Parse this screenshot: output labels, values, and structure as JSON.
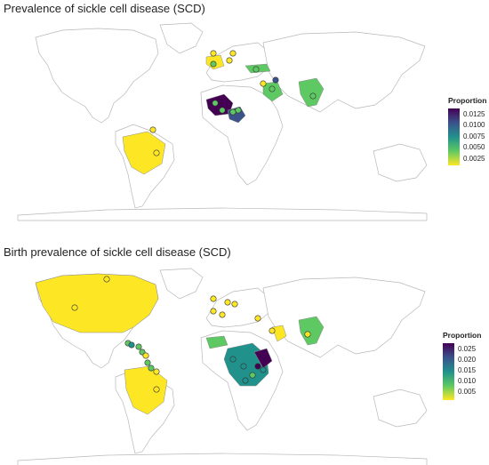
{
  "panels": [
    {
      "title": "Prevalence of sickle cell disease (SCD)",
      "legend": {
        "title": "Proportion",
        "ticks": [
          "0.0125",
          "0.0100",
          "0.0075",
          "0.0050",
          "0.0025"
        ],
        "tick_values": [
          0.0125,
          0.01,
          0.0075,
          0.005,
          0.0025
        ],
        "range": [
          0.001,
          0.0138
        ]
      }
    },
    {
      "title": "Birth prevalence of sickle cell disease (SCD)",
      "legend": {
        "title": "Proportion",
        "ticks": [
          "0.025",
          "0.020",
          "0.015",
          "0.010",
          "0.005"
        ],
        "tick_values": [
          0.025,
          0.02,
          0.015,
          0.01,
          0.005
        ],
        "range": [
          0.001,
          0.028
        ]
      }
    }
  ],
  "colors": {
    "scale": [
      "#fde725",
      "#5ec962",
      "#21918c",
      "#3b528b",
      "#440154"
    ],
    "land_fill": "#ffffff",
    "border": "#b8b8b8"
  }
}
